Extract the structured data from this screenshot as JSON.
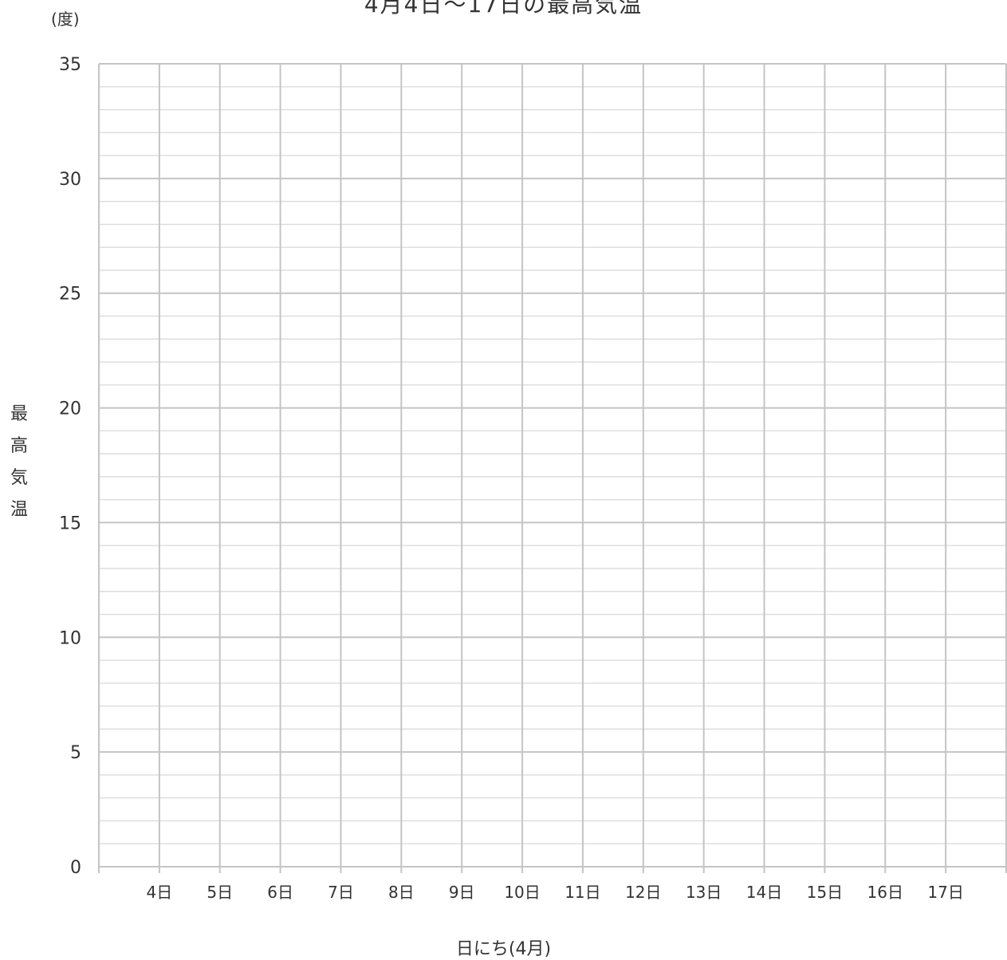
{
  "chart_data": {
    "type": "line",
    "title": "4月4日〜17日の最高気温",
    "y_unit": "(度)",
    "ylabel": "最高気温",
    "xlabel": "日にち(4月)",
    "categories": [
      "4日",
      "5日",
      "6日",
      "7日",
      "8日",
      "9日",
      "10日",
      "11日",
      "12日",
      "13日",
      "14日",
      "15日",
      "16日",
      "17日"
    ],
    "series": [],
    "ylim": [
      0,
      35
    ],
    "y_major_ticks": [
      0,
      5,
      10,
      15,
      20,
      25,
      30,
      35
    ],
    "y_minor_step": 1,
    "grid": true,
    "colors": {
      "grid_major": "#c4c4c4",
      "grid_minor": "#dcdcdc",
      "text": "#333333"
    }
  }
}
